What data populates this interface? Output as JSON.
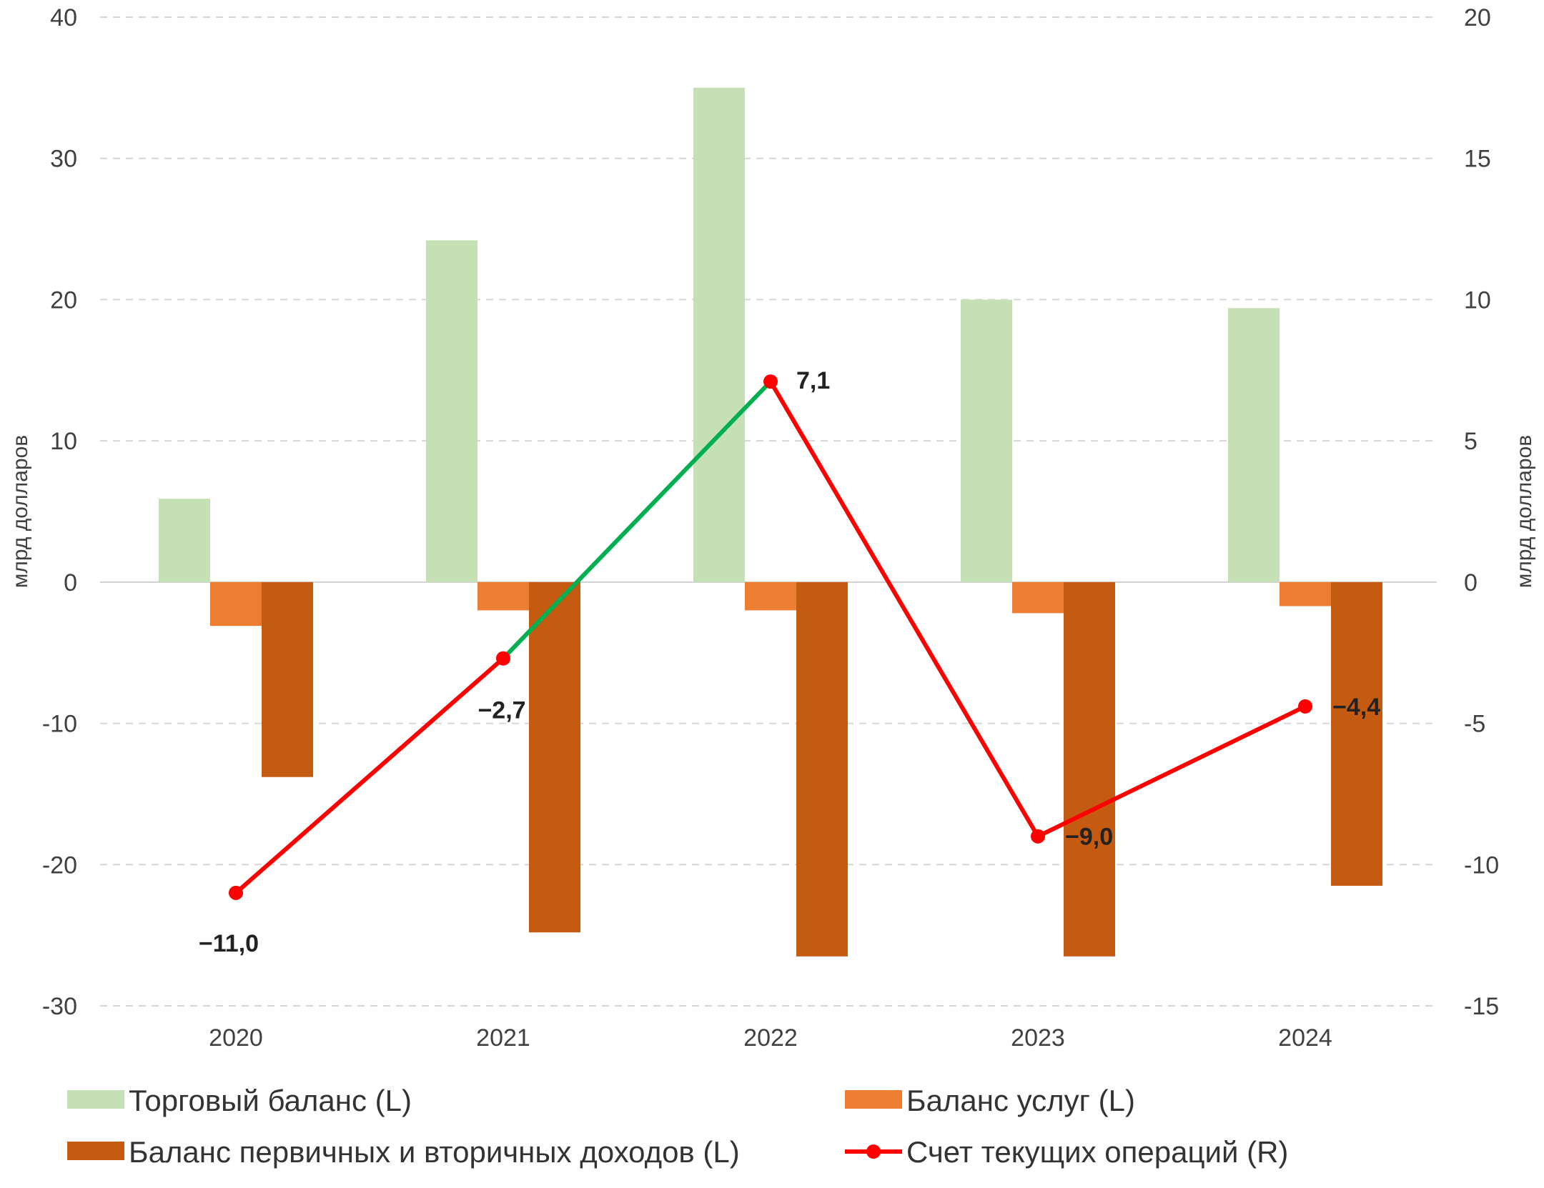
{
  "chart_data": {
    "type": "bar",
    "categories": [
      "2020",
      "2021",
      "2022",
      "2023",
      "2024"
    ],
    "series": [
      {
        "name": "Торговый баланс (L)",
        "type": "bar",
        "axis": "left",
        "color": "#c5e0b4",
        "values": [
          5.9,
          24.2,
          35.0,
          20.0,
          19.4
        ]
      },
      {
        "name": "Баланс услуг (L)",
        "type": "bar",
        "axis": "left",
        "color": "#ed7d31",
        "values": [
          -3.1,
          -2.0,
          -2.0,
          -2.2,
          -1.7
        ]
      },
      {
        "name": "Баланс первичных и вторичных доходов (L)",
        "type": "bar",
        "axis": "left",
        "color": "#c55a11",
        "values": [
          -13.8,
          -24.8,
          -26.5,
          -26.5,
          -21.5
        ]
      },
      {
        "name": "Счет текущих операций (R)",
        "type": "line",
        "axis": "right",
        "color": "#ff0000",
        "highlight_color": "#00b050",
        "highlight_segment": [
          1,
          2
        ],
        "values": [
          -11.0,
          -2.7,
          7.1,
          -9.0,
          -4.4
        ]
      }
    ],
    "data_labels": [
      "−11,0",
      "−2,7",
      "7,1",
      "−9,0",
      "−4,4"
    ],
    "left_axis": {
      "label": "млрд долларов",
      "min": -30,
      "max": 40,
      "ticks": [
        "40",
        "30",
        "20",
        "10",
        "0",
        "-10",
        "-20",
        "-30"
      ],
      "tick_values": [
        40,
        30,
        20,
        10,
        0,
        -10,
        -20,
        -30
      ]
    },
    "right_axis": {
      "label": "млрд долларов",
      "min": -15,
      "max": 20,
      "ticks": [
        "20",
        "15",
        "10",
        "5",
        "0",
        "-5",
        "-10",
        "-15"
      ],
      "tick_values": [
        20,
        15,
        10,
        5,
        0,
        -5,
        -10,
        -15
      ]
    },
    "grid": true,
    "legend_position": "bottom",
    "legend": [
      {
        "label": "Торговый баланс (L)",
        "symbol": "bar",
        "color": "#c5e0b4"
      },
      {
        "label": "Баланс услуг (L)",
        "symbol": "bar",
        "color": "#ed7d31"
      },
      {
        "label": "Баланс первичных и вторичных доходов (L)",
        "symbol": "bar",
        "color": "#c55a11"
      },
      {
        "label": "Счет текущих операций (R)",
        "symbol": "line",
        "color": "#ff0000"
      }
    ]
  }
}
